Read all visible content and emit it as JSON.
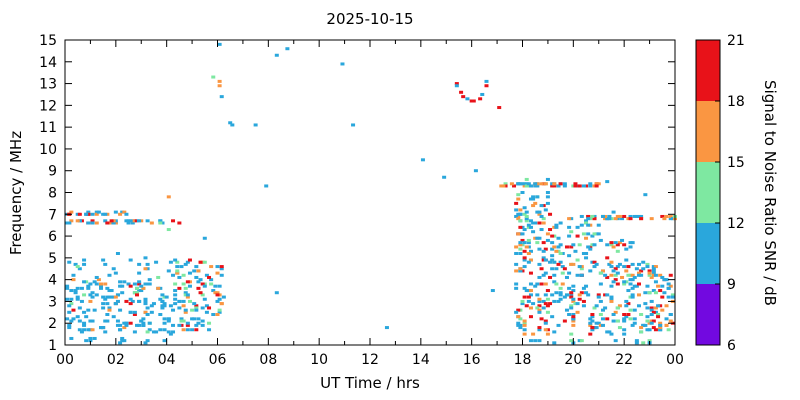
{
  "title": "2025-10-15",
  "axes": {
    "xlabel": "UT Time / hrs",
    "ylabel": "Frequency / MHz",
    "x_range": [
      0,
      24
    ],
    "y_range": [
      1,
      15
    ],
    "x_ticks": [
      {
        "v": 0,
        "label": "00"
      },
      {
        "v": 2,
        "label": "02"
      },
      {
        "v": 4,
        "label": "04"
      },
      {
        "v": 6,
        "label": "06"
      },
      {
        "v": 8,
        "label": "08"
      },
      {
        "v": 10,
        "label": "10"
      },
      {
        "v": 12,
        "label": "12"
      },
      {
        "v": 14,
        "label": "14"
      },
      {
        "v": 16,
        "label": "16"
      },
      {
        "v": 18,
        "label": "18"
      },
      {
        "v": 20,
        "label": "20"
      },
      {
        "v": 22,
        "label": "22"
      },
      {
        "v": 24,
        "label": "00"
      }
    ],
    "x_minor_ticks": [
      1,
      3,
      5,
      7,
      9,
      11,
      13,
      15,
      17,
      19,
      21,
      23
    ],
    "y_ticks": [
      1,
      2,
      3,
      4,
      5,
      6,
      7,
      8,
      9,
      10,
      11,
      12,
      13,
      14,
      15
    ]
  },
  "colorbar": {
    "label": "Signal to Noise Ratio SNR / dB",
    "min": 6,
    "max": 21,
    "tick_values": [
      6,
      9,
      12,
      15,
      18,
      21
    ],
    "bands": [
      {
        "from": 6,
        "to": 9,
        "color": "#7209e0"
      },
      {
        "from": 9,
        "to": 12,
        "color": "#2aa7dc"
      },
      {
        "from": 12,
        "to": 15,
        "color": "#7ee8a1"
      },
      {
        "from": 15,
        "to": 18,
        "color": "#fa9642"
      },
      {
        "from": 18,
        "to": 21,
        "color": "#e81219"
      }
    ]
  },
  "chart_data": {
    "type": "scatter",
    "title": "2025-10-15",
    "xlabel": "UT Time / hrs",
    "ylabel": "Frequency / MHz",
    "xlim": [
      0,
      24
    ],
    "ylim": [
      1,
      15
    ],
    "value_label": "Signal to Noise Ratio SNR / dB",
    "value_range": [
      6,
      21
    ],
    "snr_levels": {
      "p": 7.5,
      "c": 10.5,
      "g": 13.5,
      "o": 16.5,
      "r": 19.5
    },
    "points": [
      [
        0.15,
        4.85,
        10.5
      ],
      [
        2.1,
        5.2,
        10.5
      ],
      [
        2.6,
        4.9,
        10.5
      ],
      [
        3.2,
        5.0,
        10.5
      ],
      [
        4.05,
        6.3,
        13.5
      ],
      [
        4.1,
        7.8,
        16.5
      ],
      [
        5.5,
        5.9,
        10.5
      ],
      [
        5.85,
        13.3,
        13.5
      ],
      [
        6.05,
        14.8,
        10.5
      ],
      [
        6.1,
        13.05,
        16.5
      ],
      [
        6.12,
        12.85,
        16.5
      ],
      [
        6.2,
        12.4,
        10.5
      ],
      [
        6.5,
        11.15,
        10.5
      ],
      [
        6.62,
        11.05,
        10.5
      ],
      [
        7.5,
        11.1,
        10.5
      ],
      [
        7.9,
        8.3,
        10.5
      ],
      [
        8.3,
        3.4,
        10.5
      ],
      [
        8.35,
        14.3,
        10.5
      ],
      [
        8.75,
        14.55,
        10.5
      ],
      [
        10.9,
        13.95,
        10.5
      ],
      [
        11.3,
        11.1,
        10.5
      ],
      [
        12.65,
        1.75,
        10.5
      ],
      [
        14.05,
        9.5,
        10.5
      ],
      [
        14.9,
        8.65,
        10.5
      ],
      [
        15.4,
        13.0,
        19.5
      ],
      [
        15.45,
        12.9,
        10.5
      ],
      [
        15.55,
        12.6,
        19.5
      ],
      [
        15.7,
        12.4,
        19.5
      ],
      [
        15.8,
        12.35,
        10.5
      ],
      [
        16.0,
        12.2,
        19.5
      ],
      [
        16.08,
        12.15,
        19.5
      ],
      [
        16.3,
        12.25,
        19.5
      ],
      [
        16.45,
        12.5,
        10.5
      ],
      [
        16.55,
        12.95,
        19.5
      ],
      [
        16.62,
        13.05,
        10.5
      ],
      [
        16.2,
        9.0,
        10.5
      ],
      [
        16.8,
        3.5,
        10.5
      ],
      [
        17.05,
        11.9,
        19.5
      ],
      [
        18.2,
        8.6,
        13.5
      ],
      [
        19.0,
        8.55,
        10.5
      ],
      [
        20.9,
        8.3,
        19.5
      ],
      [
        21.3,
        8.5,
        10.5
      ],
      [
        22.85,
        7.9,
        10.5
      ],
      [
        21.6,
        7.05,
        10.5
      ],
      [
        23.1,
        6.85,
        16.5
      ]
    ],
    "clusters": [
      {
        "x0": 0.05,
        "x1": 4.3,
        "y0": 1.5,
        "y1": 4.0,
        "n": 190,
        "w": {
          "c": 0.8,
          "g": 0.07,
          "o": 0.06,
          "r": 0.07
        }
      },
      {
        "x0": 0.05,
        "x1": 4.3,
        "y0": 4.0,
        "y1": 5.0,
        "n": 22,
        "w": {
          "c": 0.85,
          "g": 0.1,
          "o": 0.05
        }
      },
      {
        "x0": 4.3,
        "x1": 5.9,
        "y0": 1.6,
        "y1": 5.0,
        "n": 90,
        "w": {
          "c": 0.6,
          "g": 0.12,
          "o": 0.12,
          "r": 0.16
        }
      },
      {
        "x0": 0.0,
        "x1": 4.5,
        "y0": 6.55,
        "y1": 6.75,
        "n": 45,
        "w": {
          "c": 0.55,
          "g": 0.07,
          "o": 0.2,
          "r": 0.18
        }
      },
      {
        "x0": 0.0,
        "x1": 2.5,
        "y0": 6.95,
        "y1": 7.1,
        "n": 25,
        "w": {
          "c": 0.5,
          "o": 0.25,
          "r": 0.25
        }
      },
      {
        "x0": 0.1,
        "x1": 4.0,
        "y0": 1.1,
        "y1": 1.3,
        "n": 12,
        "w": {
          "c": 1.0
        }
      },
      {
        "x0": 5.9,
        "x1": 6.25,
        "y0": 2.3,
        "y1": 4.7,
        "n": 18,
        "w": {
          "c": 0.5,
          "g": 0.1,
          "o": 0.15,
          "r": 0.25
        }
      },
      {
        "x0": 17.0,
        "x1": 21.0,
        "y0": 8.25,
        "y1": 8.45,
        "n": 55,
        "w": {
          "c": 0.45,
          "g": 0.15,
          "o": 0.2,
          "r": 0.2
        }
      },
      {
        "x0": 19.3,
        "x1": 24.0,
        "y0": 6.75,
        "y1": 6.95,
        "n": 45,
        "w": {
          "c": 0.4,
          "g": 0.1,
          "o": 0.3,
          "r": 0.2
        }
      },
      {
        "x0": 17.7,
        "x1": 19.2,
        "y0": 1.5,
        "y1": 8.0,
        "n": 180,
        "w": {
          "c": 0.5,
          "g": 0.15,
          "o": 0.17,
          "r": 0.18
        }
      },
      {
        "x0": 19.2,
        "x1": 21.0,
        "y0": 1.5,
        "y1": 6.8,
        "n": 140,
        "w": {
          "c": 0.55,
          "g": 0.15,
          "o": 0.15,
          "r": 0.15
        }
      },
      {
        "x0": 21.0,
        "x1": 22.3,
        "y0": 1.5,
        "y1": 5.8,
        "n": 90,
        "w": {
          "c": 0.6,
          "g": 0.12,
          "o": 0.14,
          "r": 0.14
        }
      },
      {
        "x0": 22.3,
        "x1": 23.3,
        "y0": 1.5,
        "y1": 4.8,
        "n": 70,
        "w": {
          "c": 0.6,
          "g": 0.12,
          "o": 0.14,
          "r": 0.14
        }
      },
      {
        "x0": 23.3,
        "x1": 24.0,
        "y0": 1.5,
        "y1": 4.2,
        "n": 40,
        "w": {
          "c": 0.6,
          "g": 0.1,
          "o": 0.15,
          "r": 0.15
        }
      },
      {
        "x0": 18.0,
        "x1": 23.5,
        "y0": 1.1,
        "y1": 1.3,
        "n": 14,
        "w": {
          "c": 0.9,
          "g": 0.1
        }
      }
    ]
  }
}
